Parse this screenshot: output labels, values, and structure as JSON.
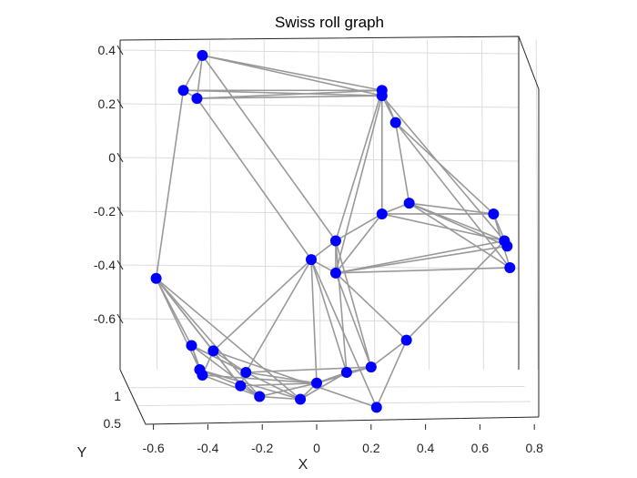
{
  "chart_data": {
    "type": "scatter",
    "subtype": "3d-graph",
    "title": "Swiss roll graph",
    "xlabel": "X",
    "ylabel": "Y",
    "zlabel": "",
    "xlim": [
      -0.65,
      0.8
    ],
    "ylim": [
      0.4,
      1.2
    ],
    "zlim": [
      -0.75,
      0.43
    ],
    "x_ticks": [
      "-0.6",
      "-0.4",
      "-0.2",
      "0",
      "0.2",
      "0.4",
      "0.6",
      "0.8"
    ],
    "y_ticks": [
      "0.5",
      "1"
    ],
    "z_ticks": [
      "0.4",
      "0.2",
      "0",
      "-0.2",
      "-0.4",
      "-0.6"
    ],
    "grid": true,
    "node_color": "#0000ff",
    "edge_color": "#999999",
    "nodes": [
      {
        "x": -0.42,
        "z": 0.38
      },
      {
        "x": -0.49,
        "z": 0.25
      },
      {
        "x": -0.44,
        "z": 0.22
      },
      {
        "x": 0.24,
        "z": 0.25
      },
      {
        "x": 0.24,
        "z": 0.23
      },
      {
        "x": 0.29,
        "z": 0.13
      },
      {
        "x": 0.34,
        "z": -0.17
      },
      {
        "x": 0.24,
        "z": -0.21
      },
      {
        "x": 0.07,
        "z": -0.31
      },
      {
        "x": -0.02,
        "z": -0.38
      },
      {
        "x": 0.07,
        "z": -0.43
      },
      {
        "x": 0.65,
        "z": -0.21
      },
      {
        "x": 0.69,
        "z": -0.31
      },
      {
        "x": 0.7,
        "z": -0.33
      },
      {
        "x": 0.71,
        "z": -0.41
      },
      {
        "x": -0.59,
        "z": -0.45
      },
      {
        "x": -0.46,
        "z": -0.7
      },
      {
        "x": -0.38,
        "z": -0.72
      },
      {
        "x": -0.43,
        "z": -0.79
      },
      {
        "x": -0.42,
        "z": -0.81
      },
      {
        "x": -0.26,
        "z": -0.8
      },
      {
        "x": -0.28,
        "z": -0.85
      },
      {
        "x": -0.21,
        "z": -0.89
      },
      {
        "x": -0.06,
        "z": -0.9
      },
      {
        "x": 0.0,
        "z": -0.84
      },
      {
        "x": 0.11,
        "z": -0.8
      },
      {
        "x": 0.2,
        "z": -0.78
      },
      {
        "x": 0.33,
        "z": -0.68
      },
      {
        "x": 0.22,
        "z": -0.93
      }
    ],
    "edges": [
      [
        0,
        1
      ],
      [
        0,
        2
      ],
      [
        0,
        3
      ],
      [
        0,
        4
      ],
      [
        1,
        2
      ],
      [
        1,
        3
      ],
      [
        1,
        4
      ],
      [
        2,
        3
      ],
      [
        2,
        4
      ],
      [
        3,
        4
      ],
      [
        3,
        5
      ],
      [
        4,
        5
      ],
      [
        1,
        15
      ],
      [
        2,
        9
      ],
      [
        0,
        8
      ],
      [
        3,
        7
      ],
      [
        3,
        8
      ],
      [
        4,
        7
      ],
      [
        4,
        10
      ],
      [
        5,
        6
      ],
      [
        5,
        11
      ],
      [
        5,
        14
      ],
      [
        4,
        12
      ],
      [
        6,
        7
      ],
      [
        6,
        11
      ],
      [
        6,
        12
      ],
      [
        6,
        13
      ],
      [
        6,
        14
      ],
      [
        7,
        11
      ],
      [
        7,
        12
      ],
      [
        7,
        8
      ],
      [
        7,
        10
      ],
      [
        8,
        9
      ],
      [
        8,
        10
      ],
      [
        8,
        25
      ],
      [
        8,
        26
      ],
      [
        9,
        10
      ],
      [
        9,
        20
      ],
      [
        9,
        24
      ],
      [
        9,
        17
      ],
      [
        9,
        25
      ],
      [
        9,
        28
      ],
      [
        10,
        14
      ],
      [
        10,
        13
      ],
      [
        10,
        26
      ],
      [
        10,
        27
      ],
      [
        10,
        12
      ],
      [
        11,
        13
      ],
      [
        11,
        14
      ],
      [
        15,
        16
      ],
      [
        15,
        17
      ],
      [
        15,
        19
      ],
      [
        15,
        21
      ],
      [
        15,
        23
      ],
      [
        15,
        22
      ],
      [
        16,
        18
      ],
      [
        16,
        19
      ],
      [
        16,
        20
      ],
      [
        16,
        22
      ],
      [
        16,
        23
      ],
      [
        17,
        19
      ],
      [
        17,
        20
      ],
      [
        17,
        21
      ],
      [
        17,
        28
      ],
      [
        18,
        19
      ],
      [
        18,
        21
      ],
      [
        18,
        23
      ],
      [
        19,
        22
      ],
      [
        19,
        24
      ],
      [
        20,
        21
      ],
      [
        20,
        24
      ],
      [
        20,
        26
      ],
      [
        21,
        22
      ],
      [
        21,
        24
      ],
      [
        22,
        23
      ],
      [
        22,
        24
      ],
      [
        23,
        24
      ],
      [
        23,
        25
      ],
      [
        24,
        25
      ],
      [
        24,
        26
      ],
      [
        25,
        26
      ],
      [
        26,
        27
      ],
      [
        27,
        28
      ],
      [
        27,
        12
      ]
    ]
  }
}
